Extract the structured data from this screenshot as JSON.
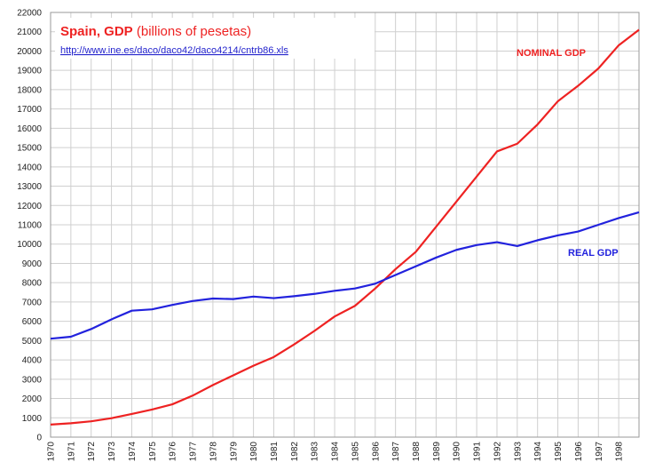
{
  "chart_data": {
    "type": "line",
    "title": "Spain, GDP",
    "subtitle": "(billions of pesetas)",
    "source": "http://www.ine.es/daco/daco42/daco4214/cntrb86.xls",
    "annotations": [
      "NOMINAL GDP",
      "REAL GDP"
    ],
    "x": [
      1970,
      1971,
      1972,
      1973,
      1974,
      1975,
      1976,
      1977,
      1978,
      1979,
      1980,
      1981,
      1982,
      1983,
      1984,
      1985,
      1986,
      1987,
      1988,
      1989,
      1990,
      1991,
      1992,
      1993,
      1994,
      1995,
      1996,
      1997,
      1998,
      1999
    ],
    "series": [
      {
        "name": "NOMINAL GDP",
        "color": "#ee2222",
        "values": [
          650,
          720,
          820,
          980,
          1200,
          1430,
          1700,
          2150,
          2700,
          3200,
          3700,
          4150,
          4800,
          5500,
          6250,
          6800,
          7700,
          8700,
          9600,
          10900,
          12200,
          13500,
          14800,
          15200,
          16200,
          17400,
          18200,
          19100,
          20300,
          21100
        ]
      },
      {
        "name": "REAL GDP",
        "color": "#2222dd",
        "values": [
          5100,
          5200,
          5600,
          6100,
          6550,
          6620,
          6850,
          7050,
          7180,
          7150,
          7280,
          7200,
          7300,
          7420,
          7580,
          7700,
          7950,
          8400,
          8850,
          9300,
          9700,
          9950,
          10100,
          9900,
          10200,
          10450,
          10650,
          11000,
          11350,
          11650
        ]
      }
    ],
    "xlim": [
      1970,
      1999
    ],
    "xticks": [
      1970,
      1971,
      1972,
      1973,
      1974,
      1975,
      1976,
      1977,
      1978,
      1979,
      1980,
      1981,
      1982,
      1983,
      1984,
      1985,
      1986,
      1987,
      1988,
      1989,
      1990,
      1991,
      1992,
      1993,
      1994,
      1995,
      1996,
      1997,
      1998
    ],
    "ylim": [
      0,
      22000
    ],
    "yticks": [
      0,
      1000,
      2000,
      3000,
      4000,
      5000,
      6000,
      7000,
      8000,
      9000,
      10000,
      11000,
      12000,
      13000,
      14000,
      15000,
      16000,
      17000,
      18000,
      19000,
      20000,
      21000,
      22000
    ],
    "grid": true
  }
}
